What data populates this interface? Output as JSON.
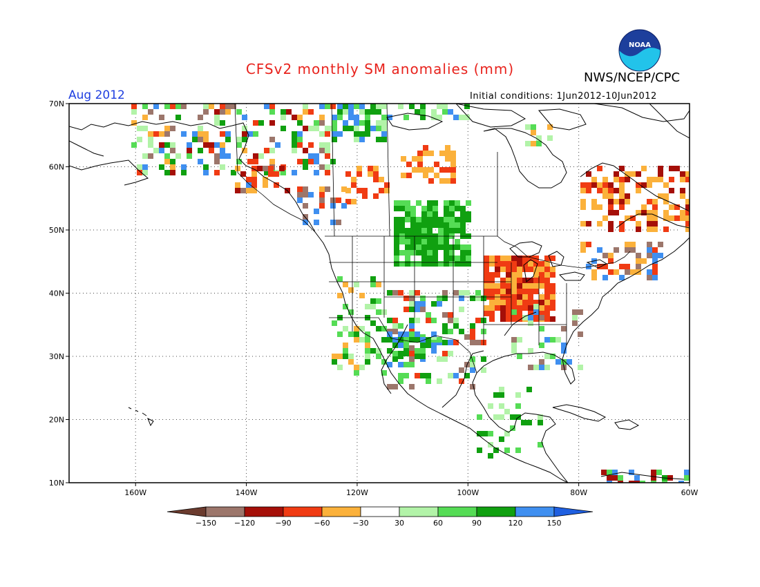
{
  "header": {
    "title": "CFSv2 monthly SM anomalies (mm)",
    "agency": "NWS/NCEP/CPC",
    "valid_month": "Aug 2012",
    "initial_conditions": "Initial conditions: 1Jun2012-10Jun2012"
  },
  "logo": {
    "text": "NOAA",
    "icon": "noaa-logo-icon"
  },
  "map": {
    "lon_range": [
      -172,
      -60
    ],
    "lat_range": [
      10,
      70
    ],
    "lat_labels": [
      "70N",
      "60N",
      "50N",
      "40N",
      "30N",
      "20N",
      "10N"
    ],
    "lon_labels": [
      "160W",
      "140W",
      "120W",
      "100W",
      "80W",
      "60W"
    ]
  },
  "colorbar": {
    "ticks": [
      "-150",
      "-120",
      "-90",
      "-60",
      "-30",
      "30",
      "60",
      "90",
      "120",
      "150"
    ],
    "colors": [
      "#6b3b2e",
      "#9c766b",
      "#a50f08",
      "#f03b13",
      "#fbb13b",
      "#ffffff",
      "#b2f3a8",
      "#55dc55",
      "#10a010",
      "#3f8ff0",
      "#1f5fe0"
    ]
  }
}
